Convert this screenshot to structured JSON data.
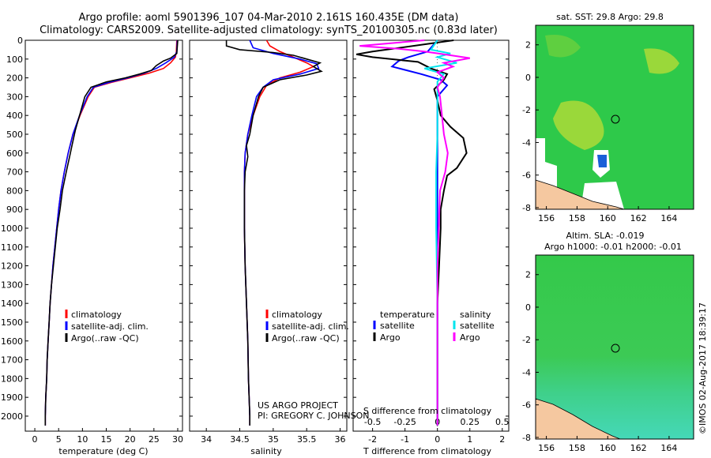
{
  "title": {
    "line1": "Argo profile: aoml 5901396_107 04-Mar-2010 2.161S 160.435E (DM data)",
    "line2": "Climatology: CARS2009. Satellite-adjusted climatology: synTS_20100305.nc (0.83d later)"
  },
  "colors": {
    "climatology": "#ff0000",
    "satellite": "#0000ff",
    "argo": "#000000",
    "sat_sal": "#00e5ee",
    "argo_sal": "#ff00ff",
    "ocean": "#2ec94a",
    "land": "#f5c8a0"
  },
  "legend_a": {
    "climatology": "climatology",
    "satellite": "satellite-adj. clim.",
    "argo": "Argo(..raw -QC)"
  },
  "legend_b": {
    "temperature": "temperature",
    "salinity": "salinity",
    "satellite": "satellite",
    "argo": "Argo"
  },
  "project": {
    "line1": "US ARGO PROJECT",
    "line2": "PI: GREGORY C. JOHNSON"
  },
  "maps": {
    "top_title": "sat. SST: 29.8 Argo: 29.8",
    "bottom_title1": "Altim. SLA: -0.019",
    "bottom_title2": "Argo h1000: -0.01 h2000: -0.01",
    "x_ticks": [
      "156",
      "158",
      "160",
      "162",
      "164"
    ],
    "y_ticks": [
      "2",
      "0",
      "-2",
      "-4",
      "-6",
      "-8"
    ]
  },
  "credit": "©IMOS 02-Aug-2017 18:39:17",
  "chart_data": [
    {
      "type": "line",
      "title": "temperature",
      "xlabel": "temperature (deg C)",
      "ylabel": "",
      "xlim": [
        -2,
        31
      ],
      "ylim": [
        2080,
        0
      ],
      "x_ticks": [
        "0",
        "5",
        "10",
        "15",
        "20",
        "25",
        "30"
      ],
      "y_ticks": [
        "0",
        "100",
        "200",
        "300",
        "400",
        "500",
        "600",
        "700",
        "800",
        "900",
        "1000",
        "1100",
        "1200",
        "1300",
        "1400",
        "1500",
        "1600",
        "1700",
        "1800",
        "1900",
        "2000"
      ],
      "series": [
        {
          "name": "climatology",
          "points": [
            [
              29.8,
              0
            ],
            [
              29.7,
              60
            ],
            [
              29.5,
              90
            ],
            [
              28.5,
              120
            ],
            [
              27,
              150
            ],
            [
              24,
              175
            ],
            [
              20,
              200
            ],
            [
              16,
              225
            ],
            [
              12.5,
              250
            ],
            [
              11.2,
              300
            ],
            [
              9.5,
              400
            ],
            [
              8,
              500
            ],
            [
              7,
              600
            ],
            [
              6.2,
              700
            ],
            [
              5.5,
              800
            ],
            [
              5,
              900
            ],
            [
              4.6,
              1000
            ],
            [
              4.2,
              1100
            ],
            [
              3.8,
              1200
            ],
            [
              3.5,
              1300
            ],
            [
              3.2,
              1400
            ],
            [
              3,
              1500
            ],
            [
              2.8,
              1600
            ],
            [
              2.6,
              1700
            ],
            [
              2.5,
              1800
            ],
            [
              2.3,
              1900
            ],
            [
              2.2,
              2000
            ],
            [
              2.2,
              2050
            ]
          ]
        },
        {
          "name": "satellite-adj. clim.",
          "points": [
            [
              29.9,
              0
            ],
            [
              29.8,
              60
            ],
            [
              29.3,
              90
            ],
            [
              27.5,
              120
            ],
            [
              25.5,
              150
            ],
            [
              23,
              175
            ],
            [
              19.5,
              200
            ],
            [
              15.5,
              225
            ],
            [
              12.3,
              250
            ],
            [
              11,
              300
            ],
            [
              9.4,
              400
            ],
            [
              8,
              500
            ],
            [
              7,
              600
            ],
            [
              6.2,
              700
            ],
            [
              5.5,
              800
            ],
            [
              5,
              900
            ],
            [
              4.6,
              1000
            ],
            [
              4.2,
              1100
            ],
            [
              3.8,
              1200
            ],
            [
              3.5,
              1300
            ],
            [
              3.2,
              1400
            ],
            [
              3,
              1500
            ],
            [
              2.8,
              1600
            ],
            [
              2.6,
              1700
            ],
            [
              2.5,
              1800
            ],
            [
              2.3,
              1900
            ],
            [
              2.2,
              2000
            ],
            [
              2.2,
              2050
            ]
          ]
        },
        {
          "name": "Argo(..raw -QC)",
          "points": [
            [
              30,
              0
            ],
            [
              29.8,
              70
            ],
            [
              28.5,
              95
            ],
            [
              27,
              110
            ],
            [
              25.5,
              135
            ],
            [
              24.5,
              160
            ],
            [
              22,
              180
            ],
            [
              19,
              200
            ],
            [
              15,
              222
            ],
            [
              11.8,
              250
            ],
            [
              10.5,
              300
            ],
            [
              9.4,
              400
            ],
            [
              8.5,
              480
            ],
            [
              7.8,
              560
            ],
            [
              7.3,
              620
            ],
            [
              6.6,
              700
            ],
            [
              5.8,
              800
            ],
            [
              5.3,
              900
            ],
            [
              4.7,
              1000
            ],
            [
              4.3,
              1100
            ],
            [
              3.9,
              1200
            ],
            [
              3.5,
              1300
            ],
            [
              3.2,
              1400
            ],
            [
              3,
              1500
            ],
            [
              2.8,
              1600
            ],
            [
              2.6,
              1700
            ],
            [
              2.5,
              1800
            ],
            [
              2.3,
              1900
            ],
            [
              2.2,
              2000
            ],
            [
              2.2,
              2050
            ]
          ]
        }
      ]
    },
    {
      "type": "line",
      "title": "salinity",
      "xlabel": "salinity",
      "ylabel": "",
      "xlim": [
        33.75,
        36.1
      ],
      "ylim": [
        2080,
        0
      ],
      "x_ticks": [
        "34",
        "34.5",
        "35",
        "35.5",
        "36"
      ],
      "series": [
        {
          "name": "climatology",
          "points": [
            [
              34.9,
              0
            ],
            [
              34.95,
              30
            ],
            [
              35.1,
              60
            ],
            [
              35.3,
              90
            ],
            [
              35.5,
              120
            ],
            [
              35.6,
              140
            ],
            [
              35.4,
              170
            ],
            [
              35.1,
              200
            ],
            [
              34.9,
              240
            ],
            [
              34.8,
              300
            ],
            [
              34.7,
              400
            ],
            [
              34.62,
              500
            ],
            [
              34.58,
              600
            ],
            [
              34.57,
              700
            ],
            [
              34.57,
              800
            ],
            [
              34.57,
              1000
            ],
            [
              34.58,
              1200
            ],
            [
              34.6,
              1400
            ],
            [
              34.62,
              1600
            ],
            [
              34.63,
              1800
            ],
            [
              34.65,
              2000
            ],
            [
              34.65,
              2050
            ]
          ]
        },
        {
          "name": "satellite-adj. clim.",
          "points": [
            [
              34.65,
              0
            ],
            [
              34.7,
              40
            ],
            [
              35.0,
              70
            ],
            [
              35.4,
              100
            ],
            [
              35.65,
              125
            ],
            [
              35.68,
              150
            ],
            [
              35.4,
              180
            ],
            [
              35.0,
              210
            ],
            [
              34.85,
              250
            ],
            [
              34.75,
              300
            ],
            [
              34.68,
              400
            ],
            [
              34.62,
              500
            ],
            [
              34.58,
              600
            ],
            [
              34.57,
              700
            ],
            [
              34.57,
              800
            ],
            [
              34.57,
              1000
            ],
            [
              34.58,
              1200
            ],
            [
              34.6,
              1400
            ],
            [
              34.62,
              1600
            ],
            [
              34.63,
              1800
            ],
            [
              34.65,
              2000
            ],
            [
              34.65,
              2050
            ]
          ]
        },
        {
          "name": "Argo(..raw -QC)",
          "points": [
            [
              34.3,
              0
            ],
            [
              34.3,
              30
            ],
            [
              34.5,
              50
            ],
            [
              35.0,
              65
            ],
            [
              35.3,
              80
            ],
            [
              35.5,
              100
            ],
            [
              35.7,
              120
            ],
            [
              35.6,
              140
            ],
            [
              35.72,
              165
            ],
            [
              35.5,
              185
            ],
            [
              35.1,
              210
            ],
            [
              34.85,
              250
            ],
            [
              34.78,
              300
            ],
            [
              34.7,
              400
            ],
            [
              34.65,
              500
            ],
            [
              34.6,
              560
            ],
            [
              34.62,
              620
            ],
            [
              34.58,
              700
            ],
            [
              34.57,
              800
            ],
            [
              34.57,
              1000
            ],
            [
              34.58,
              1200
            ],
            [
              34.6,
              1400
            ],
            [
              34.62,
              1600
            ],
            [
              34.63,
              1800
            ],
            [
              34.65,
              2000
            ],
            [
              34.65,
              2050
            ]
          ]
        }
      ]
    },
    {
      "type": "line",
      "title": "differences from climatology",
      "xlabel": "T difference from climatology",
      "xlabel_top": "S difference from climatology",
      "xlim": [
        -2.6,
        2.2
      ],
      "xlim_top": [
        -0.65,
        0.55
      ],
      "ylim": [
        2080,
        0
      ],
      "x_ticks": [
        "-2",
        "-1",
        "0",
        "1",
        "2"
      ],
      "x_ticks_top": [
        "-0.5",
        "-0.25",
        "0",
        "0.25",
        "0.5"
      ],
      "series": [
        {
          "name": "temperature satellite",
          "points": [
            [
              0,
              0
            ],
            [
              -0.3,
              60
            ],
            [
              -0.9,
              90
            ],
            [
              -1.2,
              110
            ],
            [
              -1.4,
              140
            ],
            [
              -0.5,
              180
            ],
            [
              0.1,
              210
            ],
            [
              0.3,
              240
            ],
            [
              0,
              300
            ],
            [
              0,
              500
            ],
            [
              0,
              800
            ],
            [
              0,
              1200
            ],
            [
              0,
              2050
            ]
          ]
        },
        {
          "name": "temperature Argo",
          "points": [
            [
              0.5,
              0
            ],
            [
              -2,
              60
            ],
            [
              -2.5,
              75
            ],
            [
              -2,
              90
            ],
            [
              -0.6,
              115
            ],
            [
              -0.2,
              150
            ],
            [
              0.3,
              180
            ],
            [
              0.2,
              210
            ],
            [
              -0.1,
              260
            ],
            [
              0,
              320
            ],
            [
              0.1,
              400
            ],
            [
              0.4,
              460
            ],
            [
              0.8,
              520
            ],
            [
              0.9,
              600
            ],
            [
              0.6,
              680
            ],
            [
              0.3,
              720
            ],
            [
              0.2,
              800
            ],
            [
              0.1,
              900
            ],
            [
              0.1,
              1000
            ],
            [
              0.05,
              1200
            ],
            [
              0,
              1400
            ],
            [
              0,
              2050
            ]
          ]
        },
        {
          "name": "salinity satellite",
          "points": [
            [
              0,
              0
            ],
            [
              -0.05,
              50
            ],
            [
              0.1,
              70
            ],
            [
              0,
              90
            ],
            [
              0.15,
              120
            ],
            [
              -0.1,
              150
            ],
            [
              0.05,
              180
            ],
            [
              0,
              220
            ],
            [
              0,
              500
            ],
            [
              -0.01,
              700
            ],
            [
              -0.01,
              1000
            ],
            [
              0,
              1400
            ],
            [
              0,
              2050
            ]
          ]
        },
        {
          "name": "salinity Argo",
          "points": [
            [
              -0.1,
              0
            ],
            [
              -0.6,
              30
            ],
            [
              -0.3,
              45
            ],
            [
              -0.1,
              60
            ],
            [
              0.05,
              75
            ],
            [
              0.25,
              95
            ],
            [
              0.05,
              120
            ],
            [
              0.12,
              140
            ],
            [
              0,
              170
            ],
            [
              0.05,
              200
            ],
            [
              0,
              250
            ],
            [
              0.02,
              300
            ],
            [
              0.05,
              500
            ],
            [
              0.08,
              600
            ],
            [
              0.06,
              700
            ],
            [
              0.02,
              800
            ],
            [
              0.01,
              1000
            ],
            [
              0,
              1200
            ],
            [
              0,
              2050
            ]
          ]
        }
      ]
    }
  ]
}
